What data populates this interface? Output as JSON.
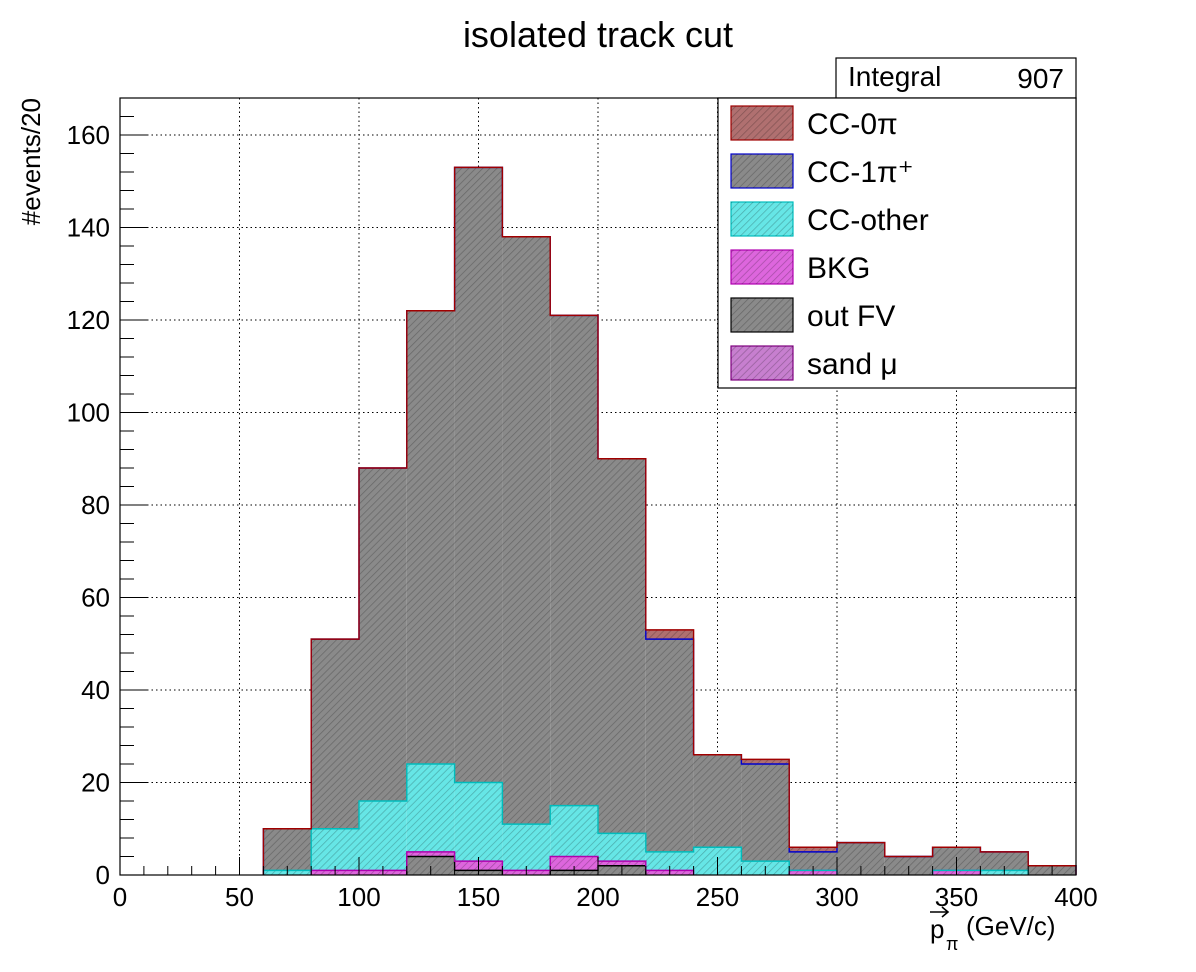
{
  "chart_data": {
    "type": "bar",
    "title": "isolated track cut",
    "xlabel": "(GeV/c)",
    "xlabel_symbol": "p",
    "xlabel_subscript": "π",
    "ylabel": "#events/20",
    "xlim": [
      0,
      400
    ],
    "ylim": [
      0,
      168
    ],
    "x_ticks": [
      0,
      50,
      100,
      150,
      200,
      250,
      300,
      350,
      400
    ],
    "y_ticks": [
      0,
      20,
      40,
      60,
      80,
      100,
      120,
      140,
      160
    ],
    "grid": true,
    "histogram_style": "stacked",
    "bin_edges": [
      0,
      20,
      40,
      60,
      80,
      100,
      120,
      140,
      160,
      180,
      200,
      220,
      240,
      260,
      280,
      300,
      320,
      340,
      360,
      380,
      400
    ],
    "series": [
      {
        "name": "sand μ",
        "color": "#c77fcf",
        "edge": "#800080",
        "values": [
          0,
          0,
          0,
          0,
          0,
          0,
          0,
          0,
          0,
          0,
          0,
          0,
          0,
          0,
          0,
          0,
          0,
          0,
          0,
          0
        ]
      },
      {
        "name": "out FV",
        "color": "#8a8a8a",
        "edge": "#000000",
        "values": [
          0,
          0,
          0,
          0,
          0,
          0,
          4,
          1,
          0,
          1,
          2,
          0,
          0,
          0,
          0,
          0,
          0,
          0,
          0,
          0
        ]
      },
      {
        "name": "BKG",
        "color": "#dd66dd",
        "edge": "#b000b0",
        "values": [
          0,
          0,
          0,
          0,
          1,
          1,
          1,
          2,
          1,
          3,
          1,
          1,
          0,
          0,
          1,
          0,
          0,
          1,
          0,
          0
        ]
      },
      {
        "name": "CC-other",
        "color": "#66e6e6",
        "edge": "#00bcbc",
        "values": [
          0,
          0,
          0,
          1,
          9,
          15,
          19,
          17,
          10,
          11,
          6,
          4,
          6,
          3,
          0,
          0,
          0,
          0,
          1,
          0
        ]
      },
      {
        "name": "CC-1π⁺",
        "color": "#8a8a8a",
        "edge": "#0000cc",
        "values": [
          0,
          0,
          0,
          9,
          41,
          72,
          98,
          133,
          127,
          106,
          81,
          46,
          20,
          21,
          4,
          7,
          4,
          5,
          4,
          2
        ]
      },
      {
        "name": "CC-0π",
        "color": "#b07070",
        "edge": "#a00000",
        "values": [
          0,
          0,
          0,
          0,
          0,
          0,
          0,
          0,
          0,
          0,
          0,
          2,
          0,
          1,
          1,
          0,
          0,
          0,
          0,
          0
        ]
      }
    ],
    "legend": {
      "placement": "top-right",
      "entries": [
        "CC-0π",
        "CC-1π⁺",
        "CC-other",
        "BKG",
        "out FV",
        "sand μ"
      ]
    },
    "stats": {
      "label": "Integral",
      "value": "907"
    }
  }
}
